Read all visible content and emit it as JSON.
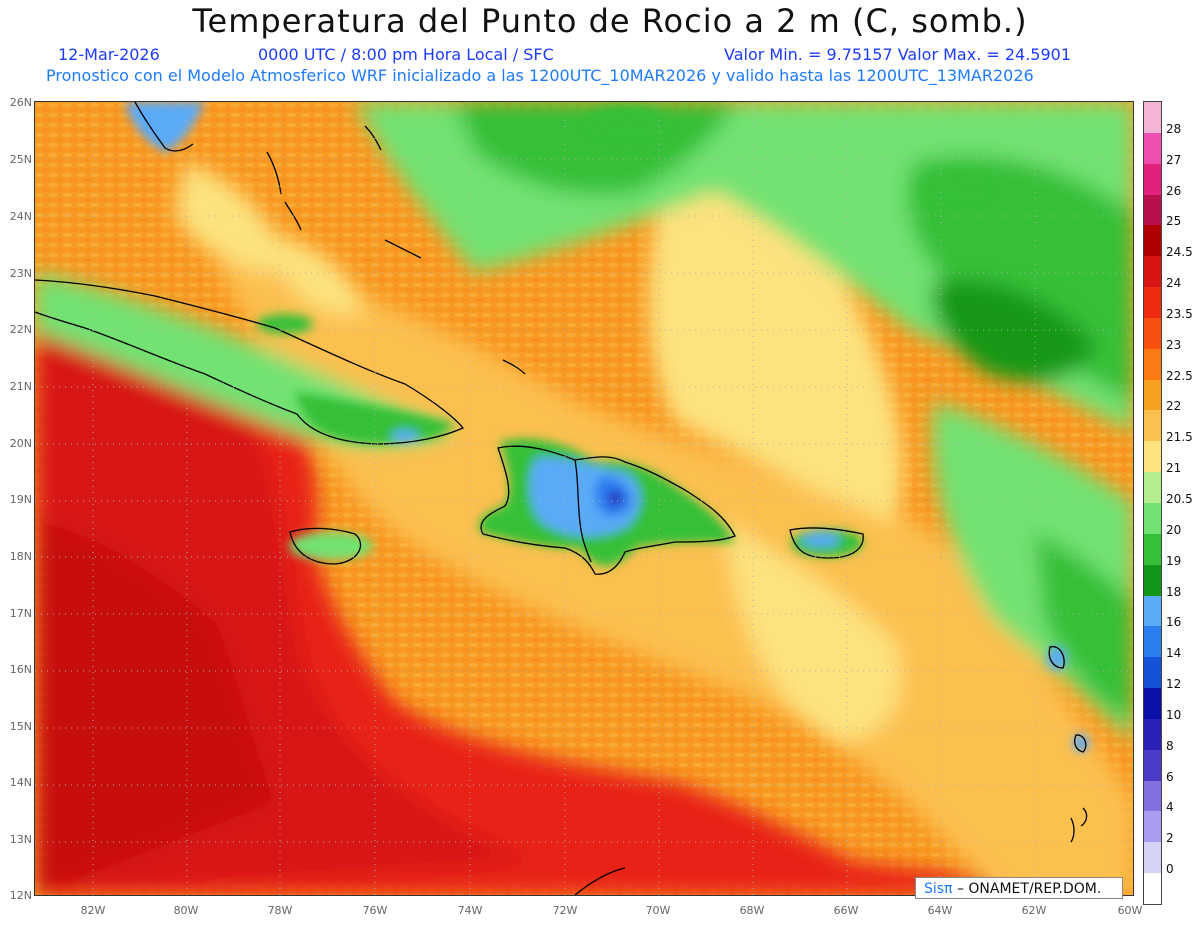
{
  "header": {
    "title": "Temperatura del Punto de Rocio a 2 m (C, somb.)",
    "date": "12-Mar-2026",
    "time": "0000 UTC / 8:00 pm Hora Local / SFC",
    "minmax": "Valor Min. = 9.75157  Valor Max. = 24.5901",
    "model_line": "Pronostico con el Modelo Atmosferico WRF inicializado a las 1200UTC_10MAR2026 y valido hasta las  1200UTC_13MAR2026"
  },
  "map": {
    "latitude_labels": [
      "26N",
      "25N",
      "24N",
      "23N",
      "22N",
      "21N",
      "20N",
      "19N",
      "18N",
      "17N",
      "16N",
      "15N",
      "14N",
      "13N",
      "12N"
    ],
    "longitude_labels": [
      "82W",
      "80W",
      "78W",
      "76W",
      "74W",
      "72W",
      "70W",
      "68W",
      "66W",
      "64W",
      "62W",
      "60W"
    ]
  },
  "colorbar": {
    "labels": [
      "28",
      "27",
      "26",
      "25",
      "24.5",
      "24",
      "23.5",
      "23",
      "22.5",
      "22",
      "21.5",
      "21",
      "20.5",
      "20",
      "19",
      "18",
      "16",
      "14",
      "12",
      "10",
      "8",
      "6",
      "4",
      "2",
      "0"
    ],
    "colors": [
      "#f4b4d6",
      "#ee4fb0",
      "#e0207a",
      "#b8104e",
      "#b00000",
      "#d81414",
      "#ee2a10",
      "#f85010",
      "#fa7a14",
      "#f8a020",
      "#fcc050",
      "#fde27e",
      "#b4ee8c",
      "#72e272",
      "#34c038",
      "#129818",
      "#5aaaf8",
      "#2a7ef0",
      "#1452d8",
      "#0a10a8",
      "#2a22b8",
      "#4a3cc8",
      "#8270e0",
      "#aa9cf0",
      "#d4d4f6",
      "#ffffff"
    ]
  },
  "footer": {
    "logo_brand": "Sisπ",
    "logo_org": " – ONAMET/REP.DOM."
  }
}
